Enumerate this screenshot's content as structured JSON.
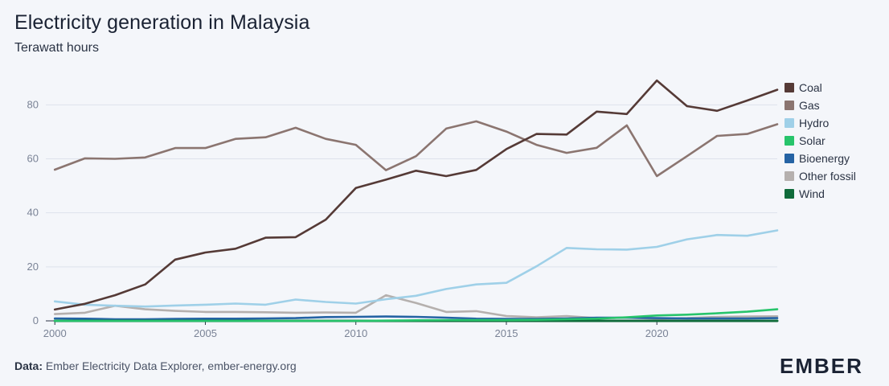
{
  "title": "Electricity generation in Malaysia",
  "subtitle": "Terawatt hours",
  "source_label": "Data:",
  "source_text": "Ember Electricity Data Explorer, ember-energy.org",
  "logo_text": "EMBER",
  "chart_data": {
    "type": "line",
    "title": "Electricity generation in Malaysia",
    "ylabel": "Terawatt hours",
    "xlabel": "",
    "xlim": [
      1999.7,
      2024
    ],
    "ylim": [
      0,
      95
    ],
    "x_ticks": [
      2000,
      2005,
      2010,
      2015,
      2020
    ],
    "y_ticks": [
      0,
      20,
      40,
      60,
      80
    ],
    "grid": true,
    "legend_position": "right",
    "x": [
      2000,
      2001,
      2002,
      2003,
      2004,
      2005,
      2006,
      2007,
      2008,
      2009,
      2010,
      2011,
      2012,
      2013,
      2014,
      2015,
      2016,
      2017,
      2018,
      2019,
      2020,
      2021,
      2022,
      2023,
      2024
    ],
    "series": [
      {
        "name": "Coal",
        "color": "#553a36",
        "values": [
          4.2,
          6.3,
          9.5,
          13.5,
          22.7,
          25.3,
          26.7,
          30.8,
          31.0,
          37.5,
          49.2,
          52.3,
          55.6,
          53.6,
          55.9,
          63.6,
          69.2,
          69.0,
          77.5,
          76.6,
          89.0,
          79.5,
          77.8,
          81.6,
          85.6
        ]
      },
      {
        "name": "Gas",
        "color": "#8b7570",
        "values": [
          56.0,
          60.2,
          60.0,
          60.5,
          64.0,
          64.0,
          67.4,
          68.0,
          71.5,
          67.4,
          65.2,
          55.8,
          61.0,
          71.2,
          73.9,
          70.1,
          65.2,
          62.2,
          64.1,
          72.4,
          53.6,
          61.0,
          68.5,
          69.2,
          72.8
        ]
      },
      {
        "name": "Hydro",
        "color": "#9fd0e8",
        "values": [
          7.2,
          6.0,
          5.6,
          5.3,
          5.7,
          6.0,
          6.4,
          6.0,
          7.9,
          7.0,
          6.4,
          8.0,
          9.3,
          11.8,
          13.5,
          14.1,
          20.2,
          27.0,
          26.5,
          26.4,
          27.4,
          30.2,
          31.8,
          31.5,
          33.5
        ]
      },
      {
        "name": "Solar",
        "color": "#27c46b",
        "values": [
          0,
          0,
          0,
          0,
          0,
          0,
          0,
          0,
          0,
          0,
          0,
          0.1,
          0.2,
          0.3,
          0.3,
          0.3,
          0.4,
          0.6,
          0.8,
          1.3,
          2.0,
          2.3,
          2.8,
          3.4,
          4.3
        ]
      },
      {
        "name": "Bioenergy",
        "color": "#2563a4",
        "values": [
          0.9,
          0.8,
          0.6,
          0.6,
          0.7,
          0.8,
          0.8,
          0.9,
          1.0,
          1.4,
          1.5,
          1.6,
          1.5,
          1.2,
          0.8,
          0.7,
          0.7,
          0.9,
          1.2,
          1.2,
          1.0,
          0.9,
          0.9,
          0.9,
          1.0
        ]
      },
      {
        "name": "Other fossil",
        "color": "#b5b0ae",
        "values": [
          2.5,
          3.0,
          5.6,
          4.3,
          3.7,
          3.3,
          3.3,
          3.2,
          3.0,
          3.1,
          3.0,
          9.5,
          6.6,
          3.3,
          3.6,
          1.8,
          1.3,
          1.8,
          1.0,
          1.2,
          0.8,
          1.0,
          1.5,
          1.6,
          1.7
        ]
      },
      {
        "name": "Wind",
        "color": "#0f6b3a",
        "values": [
          0,
          0,
          0,
          0,
          0,
          0,
          0,
          0,
          0,
          0,
          0,
          0,
          0,
          0,
          0,
          0,
          0,
          0,
          0,
          0,
          0,
          0,
          0,
          0,
          0
        ]
      }
    ]
  }
}
